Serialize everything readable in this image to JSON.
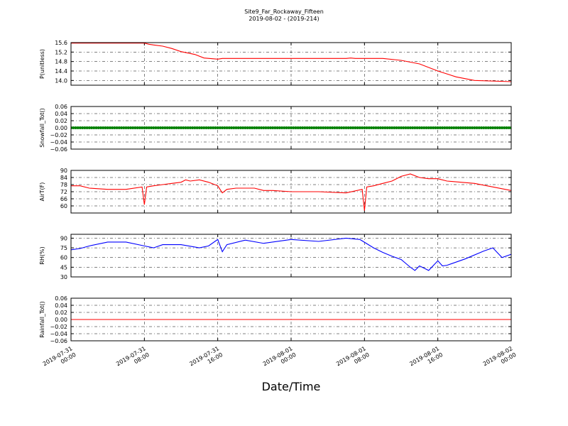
{
  "figure": {
    "title_line1": "Site9_Far_Rockaway_Fifteen",
    "title_line2": "2019-08-02 - (2019-214)",
    "xlabel": "Date/Time",
    "x_ticks": [
      {
        "line1": "2019-07-31",
        "line2": "00:00"
      },
      {
        "line1": "2019-07-31",
        "line2": "08:00"
      },
      {
        "line1": "2019-07-31",
        "line2": "16:00"
      },
      {
        "line1": "2019-08-01",
        "line2": "00:00"
      },
      {
        "line1": "2019-08-01",
        "line2": "08:00"
      },
      {
        "line1": "2019-08-01",
        "line2": "16:00"
      },
      {
        "line1": "2019-08-02",
        "line2": "00:00"
      }
    ]
  },
  "chart_data": [
    {
      "type": "line",
      "ylabel": "P(unitless)",
      "ylim": [
        13.8,
        15.6
      ],
      "yticks": [
        "15.6",
        "15.2",
        "14.8",
        "14.4",
        "14.0"
      ],
      "ytick_values": [
        15.6,
        15.2,
        14.8,
        14.4,
        14.0
      ],
      "xlim": [
        "2019-07-31 00:00",
        "2019-08-02 00:00"
      ],
      "grid": true,
      "color": "#ff0000",
      "marker": "line",
      "x": [
        "2019-07-31 00:00",
        "2019-07-31 08:00",
        "2019-07-31 08:30",
        "2019-07-31 09:00",
        "2019-07-31 10:00",
        "2019-07-31 11:00",
        "2019-07-31 12:00",
        "2019-07-31 13:30",
        "2019-07-31 14:30",
        "2019-07-31 16:00",
        "2019-07-31 16:30",
        "2019-08-01 00:00",
        "2019-08-01 06:00",
        "2019-08-01 06:30",
        "2019-08-01 07:00",
        "2019-08-01 10:00",
        "2019-08-01 12:00",
        "2019-08-01 14:00",
        "2019-08-01 16:00",
        "2019-08-01 18:00",
        "2019-08-01 20:00",
        "2019-08-02 00:00"
      ],
      "y": [
        15.58,
        15.58,
        15.53,
        15.5,
        15.45,
        15.35,
        15.22,
        15.1,
        14.95,
        14.9,
        14.93,
        14.93,
        14.93,
        14.95,
        14.93,
        14.93,
        14.85,
        14.7,
        14.4,
        14.15,
        14.0,
        13.95
      ]
    },
    {
      "type": "scatter",
      "ylabel": "Snowfall_Tot()",
      "ylim": [
        -0.06,
        0.06
      ],
      "yticks": [
        "0.06",
        "0.04",
        "0.02",
        "0.00",
        "−0.02",
        "−0.04",
        "−0.06"
      ],
      "ytick_values": [
        0.06,
        0.04,
        0.02,
        0.0,
        -0.02,
        -0.04,
        -0.06
      ],
      "xlim": [
        "2019-07-31 00:00",
        "2019-08-02 00:00"
      ],
      "grid": true,
      "color": "#008000",
      "marker": "dots",
      "x_range": [
        "2019-07-31 00:00",
        "2019-08-02 00:00"
      ],
      "constant_value": 0.0
    },
    {
      "type": "line",
      "ylabel": "AirT(F)",
      "ylim": [
        54,
        90
      ],
      "yticks": [
        "90",
        "84",
        "78",
        "72",
        "66",
        "60"
      ],
      "ytick_values": [
        90,
        84,
        78,
        72,
        66,
        60
      ],
      "xlim": [
        "2019-07-31 00:00",
        "2019-08-02 00:00"
      ],
      "grid": true,
      "color": "#ff0000",
      "marker": "line",
      "x": [
        "2019-07-31 00:00",
        "2019-07-31 01:00",
        "2019-07-31 02:00",
        "2019-07-31 04:00",
        "2019-07-31 06:00",
        "2019-07-31 07:45",
        "2019-07-31 08:00",
        "2019-07-31 08:15",
        "2019-07-31 09:00",
        "2019-07-31 10:00",
        "2019-07-31 11:00",
        "2019-07-31 12:00",
        "2019-07-31 12:30",
        "2019-07-31 13:00",
        "2019-07-31 14:00",
        "2019-07-31 15:00",
        "2019-07-31 16:00",
        "2019-07-31 16:30",
        "2019-07-31 17:00",
        "2019-07-31 18:00",
        "2019-07-31 20:00",
        "2019-07-31 21:00",
        "2019-07-31 22:00",
        "2019-08-01 00:00",
        "2019-08-01 03:00",
        "2019-08-01 06:00",
        "2019-08-01 07:45",
        "2019-08-01 08:00",
        "2019-08-01 08:15",
        "2019-08-01 09:00",
        "2019-08-01 10:00",
        "2019-08-01 11:00",
        "2019-08-01 12:00",
        "2019-08-01 13:00",
        "2019-08-01 14:00",
        "2019-08-01 15:00",
        "2019-08-01 16:00",
        "2019-08-01 17:00",
        "2019-08-01 20:00",
        "2019-08-01 22:00",
        "2019-08-02 00:00"
      ],
      "y": [
        77,
        77,
        75,
        74,
        74,
        76,
        61,
        76,
        77,
        78,
        79,
        80,
        82,
        81,
        82,
        80,
        77,
        71,
        74,
        75,
        75,
        73,
        73,
        72,
        72,
        71,
        74,
        56,
        76,
        77,
        79,
        81,
        85,
        87,
        84,
        83,
        83,
        81,
        79,
        76,
        73
      ]
    },
    {
      "type": "line",
      "ylabel": "RH(%)",
      "ylim": [
        30,
        96
      ],
      "yticks": [
        "90",
        "75",
        "60",
        "45",
        "30"
      ],
      "ytick_values": [
        90,
        75,
        60,
        45,
        30
      ],
      "xlim": [
        "2019-07-31 00:00",
        "2019-08-02 00:00"
      ],
      "grid": true,
      "color": "#0000ff",
      "marker": "line",
      "x": [
        "2019-07-31 00:00",
        "2019-07-31 01:00",
        "2019-07-31 02:00",
        "2019-07-31 04:00",
        "2019-07-31 06:00",
        "2019-07-31 08:00",
        "2019-07-31 09:00",
        "2019-07-31 10:00",
        "2019-07-31 11:00",
        "2019-07-31 12:00",
        "2019-07-31 14:00",
        "2019-07-31 15:00",
        "2019-07-31 16:00",
        "2019-07-31 16:30",
        "2019-07-31 17:00",
        "2019-07-31 19:00",
        "2019-07-31 21:00",
        "2019-08-01 00:00",
        "2019-08-01 03:00",
        "2019-08-01 06:00",
        "2019-08-01 07:30",
        "2019-08-01 09:00",
        "2019-08-01 10:00",
        "2019-08-01 11:00",
        "2019-08-01 12:00",
        "2019-08-01 13:00",
        "2019-08-01 13:30",
        "2019-08-01 14:00",
        "2019-08-01 15:00",
        "2019-08-01 16:00",
        "2019-08-01 16:30",
        "2019-08-01 17:00",
        "2019-08-01 19:00",
        "2019-08-01 21:00",
        "2019-08-01 22:00",
        "2019-08-01 23:00",
        "2019-08-02 00:00"
      ],
      "y": [
        72,
        74,
        78,
        84,
        84,
        78,
        75,
        80,
        80,
        80,
        75,
        78,
        88,
        69,
        80,
        87,
        82,
        88,
        85,
        90,
        88,
        75,
        68,
        62,
        57,
        45,
        40,
        47,
        40,
        55,
        47,
        48,
        58,
        70,
        75,
        60,
        65
      ]
    },
    {
      "type": "line",
      "ylabel": "Rainfall_Tot()",
      "ylim": [
        -0.06,
        0.06
      ],
      "yticks": [
        "0.06",
        "0.04",
        "0.02",
        "0.00",
        "−0.02",
        "−0.04",
        "−0.06"
      ],
      "ytick_values": [
        0.06,
        0.04,
        0.02,
        0.0,
        -0.02,
        -0.04,
        -0.06
      ],
      "xlim": [
        "2019-07-31 00:00",
        "2019-08-02 00:00"
      ],
      "grid": true,
      "color": "#ff0000",
      "marker": "line",
      "x": [
        "2019-07-31 00:00",
        "2019-08-02 00:00"
      ],
      "y": [
        0.0,
        0.0
      ]
    }
  ]
}
